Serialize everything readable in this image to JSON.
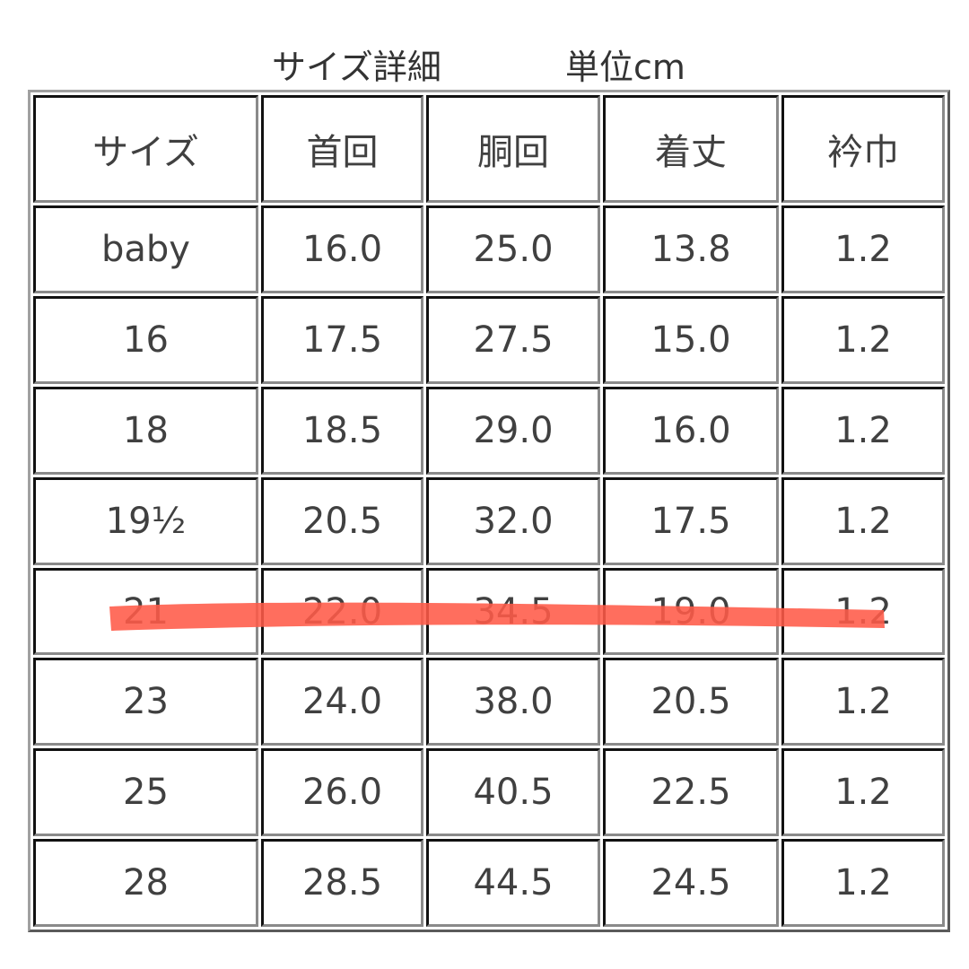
{
  "title": "サイズ詳細",
  "unit": "単位cm",
  "headers": [
    "サイズ",
    "首回",
    "胴回",
    "着丈",
    "衿巾"
  ],
  "rows": [
    [
      "baby",
      "16.0",
      "25.0",
      "13.8",
      "1.2"
    ],
    [
      "16",
      "17.5",
      "27.5",
      "15.0",
      "1.2"
    ],
    [
      "18",
      "18.5",
      "29.0",
      "16.0",
      "1.2"
    ],
    [
      "19½",
      "20.5",
      "32.0",
      "17.5",
      "1.2"
    ],
    [
      "21",
      "22.0",
      "34.5",
      "19.0",
      "1.2"
    ],
    [
      "23",
      "24.0",
      "38.0",
      "20.5",
      "1.2"
    ],
    [
      "25",
      "26.0",
      "40.5",
      "22.5",
      "1.2"
    ],
    [
      "28",
      "28.5",
      "44.5",
      "24.5",
      "1.2"
    ]
  ],
  "highlighted_row": "21",
  "highlight_color": "#ff5a48"
}
